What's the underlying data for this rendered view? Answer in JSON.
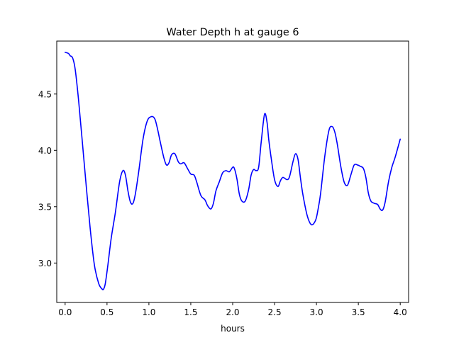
{
  "chart_data": {
    "type": "line",
    "title": "Water Depth h at gauge 6",
    "xlabel": "hours",
    "ylabel": "",
    "xlim": [
      -0.1,
      4.1
    ],
    "ylim": [
      2.65,
      4.97
    ],
    "grid": false,
    "x_ticks": [
      0.0,
      0.5,
      1.0,
      1.5,
      2.0,
      2.5,
      3.0,
      3.5,
      4.0
    ],
    "x_tick_labels": [
      "0.0",
      "0.5",
      "1.0",
      "1.5",
      "2.0",
      "2.5",
      "3.0",
      "3.5",
      "4.0"
    ],
    "y_ticks": [
      3.0,
      3.5,
      4.0,
      4.5
    ],
    "y_tick_labels": [
      "3.0",
      "3.5",
      "4.0",
      "4.5"
    ],
    "series": [
      {
        "color": "#0000ff",
        "x": [
          0.0,
          0.04,
          0.06,
          0.09,
          0.12,
          0.16,
          0.2,
          0.25,
          0.3,
          0.35,
          0.4,
          0.44,
          0.46,
          0.48,
          0.51,
          0.55,
          0.6,
          0.65,
          0.69,
          0.72,
          0.75,
          0.78,
          0.81,
          0.84,
          0.88,
          0.93,
          0.98,
          1.03,
          1.07,
          1.1,
          1.14,
          1.18,
          1.21,
          1.24,
          1.27,
          1.31,
          1.35,
          1.38,
          1.42,
          1.46,
          1.5,
          1.54,
          1.57,
          1.62,
          1.67,
          1.7,
          1.74,
          1.77,
          1.8,
          1.84,
          1.88,
          1.92,
          1.96,
          2.0,
          2.02,
          2.05,
          2.08,
          2.11,
          2.15,
          2.19,
          2.22,
          2.25,
          2.28,
          2.31,
          2.34,
          2.38,
          2.41,
          2.43,
          2.46,
          2.5,
          2.54,
          2.57,
          2.6,
          2.65,
          2.68,
          2.72,
          2.75,
          2.78,
          2.81,
          2.84,
          2.89,
          2.94,
          2.99,
          3.02,
          3.05,
          3.1,
          3.15,
          3.19,
          3.22,
          3.25,
          3.29,
          3.33,
          3.37,
          3.41,
          3.45,
          3.49,
          3.52,
          3.56,
          3.59,
          3.62,
          3.65,
          3.69,
          3.73,
          3.76,
          3.79,
          3.82,
          3.86,
          3.9,
          3.94,
          4.0
        ],
        "y": [
          4.87,
          4.86,
          4.84,
          4.82,
          4.72,
          4.45,
          4.12,
          3.7,
          3.3,
          2.98,
          2.82,
          2.77,
          2.77,
          2.82,
          2.98,
          3.22,
          3.45,
          3.72,
          3.82,
          3.78,
          3.64,
          3.54,
          3.53,
          3.62,
          3.82,
          4.1,
          4.26,
          4.3,
          4.28,
          4.2,
          4.06,
          3.93,
          3.87,
          3.89,
          3.96,
          3.97,
          3.9,
          3.88,
          3.89,
          3.84,
          3.79,
          3.78,
          3.72,
          3.6,
          3.56,
          3.51,
          3.48,
          3.53,
          3.64,
          3.72,
          3.8,
          3.82,
          3.81,
          3.85,
          3.84,
          3.75,
          3.61,
          3.55,
          3.55,
          3.65,
          3.78,
          3.83,
          3.82,
          3.85,
          4.07,
          4.32,
          4.25,
          4.1,
          3.93,
          3.74,
          3.68,
          3.73,
          3.76,
          3.74,
          3.77,
          3.9,
          3.97,
          3.92,
          3.75,
          3.6,
          3.42,
          3.34,
          3.38,
          3.48,
          3.62,
          3.95,
          4.18,
          4.21,
          4.16,
          4.05,
          3.86,
          3.72,
          3.69,
          3.78,
          3.87,
          3.87,
          3.86,
          3.84,
          3.76,
          3.62,
          3.55,
          3.53,
          3.52,
          3.48,
          3.47,
          3.54,
          3.72,
          3.85,
          3.94,
          4.1
        ]
      }
    ]
  }
}
